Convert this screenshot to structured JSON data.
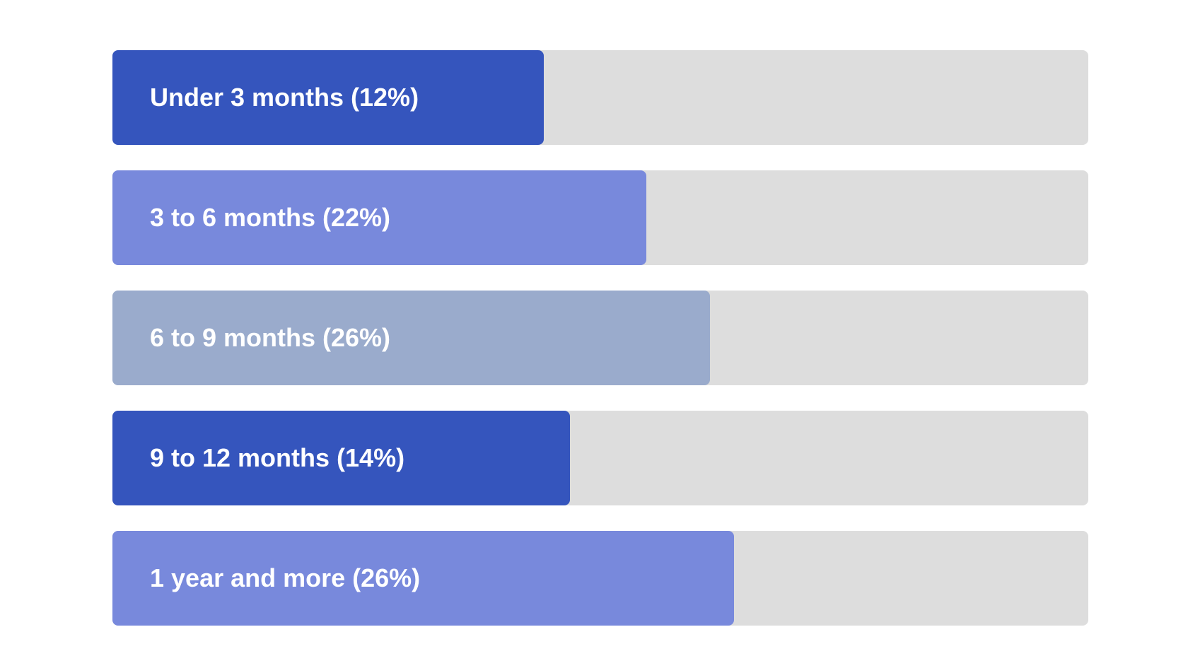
{
  "chart_data": {
    "type": "bar",
    "orientation": "horizontal",
    "title": "",
    "xlabel": "",
    "ylabel": "",
    "grid": false,
    "legend": "none",
    "categories": [
      "Under 3 months",
      "3 to 6 months",
      "6 to 9 months",
      "9 to 12 months",
      "1 year and more"
    ],
    "values": [
      12,
      22,
      26,
      14,
      26
    ],
    "labels": [
      "Under 3 months (12%)",
      "3 to 6 months (22%)",
      "6 to 9 months (26%)",
      "9 to 12 months (14%)",
      "1 year and more (26%)"
    ],
    "fill_fractions": [
      0.442,
      0.547,
      0.612,
      0.469,
      0.637
    ],
    "colors": [
      "#3555bd",
      "#7889dc",
      "#9aabcc",
      "#3555bd",
      "#7889dc"
    ],
    "track_color": "#dddddd",
    "label_color": "#ffffff"
  }
}
